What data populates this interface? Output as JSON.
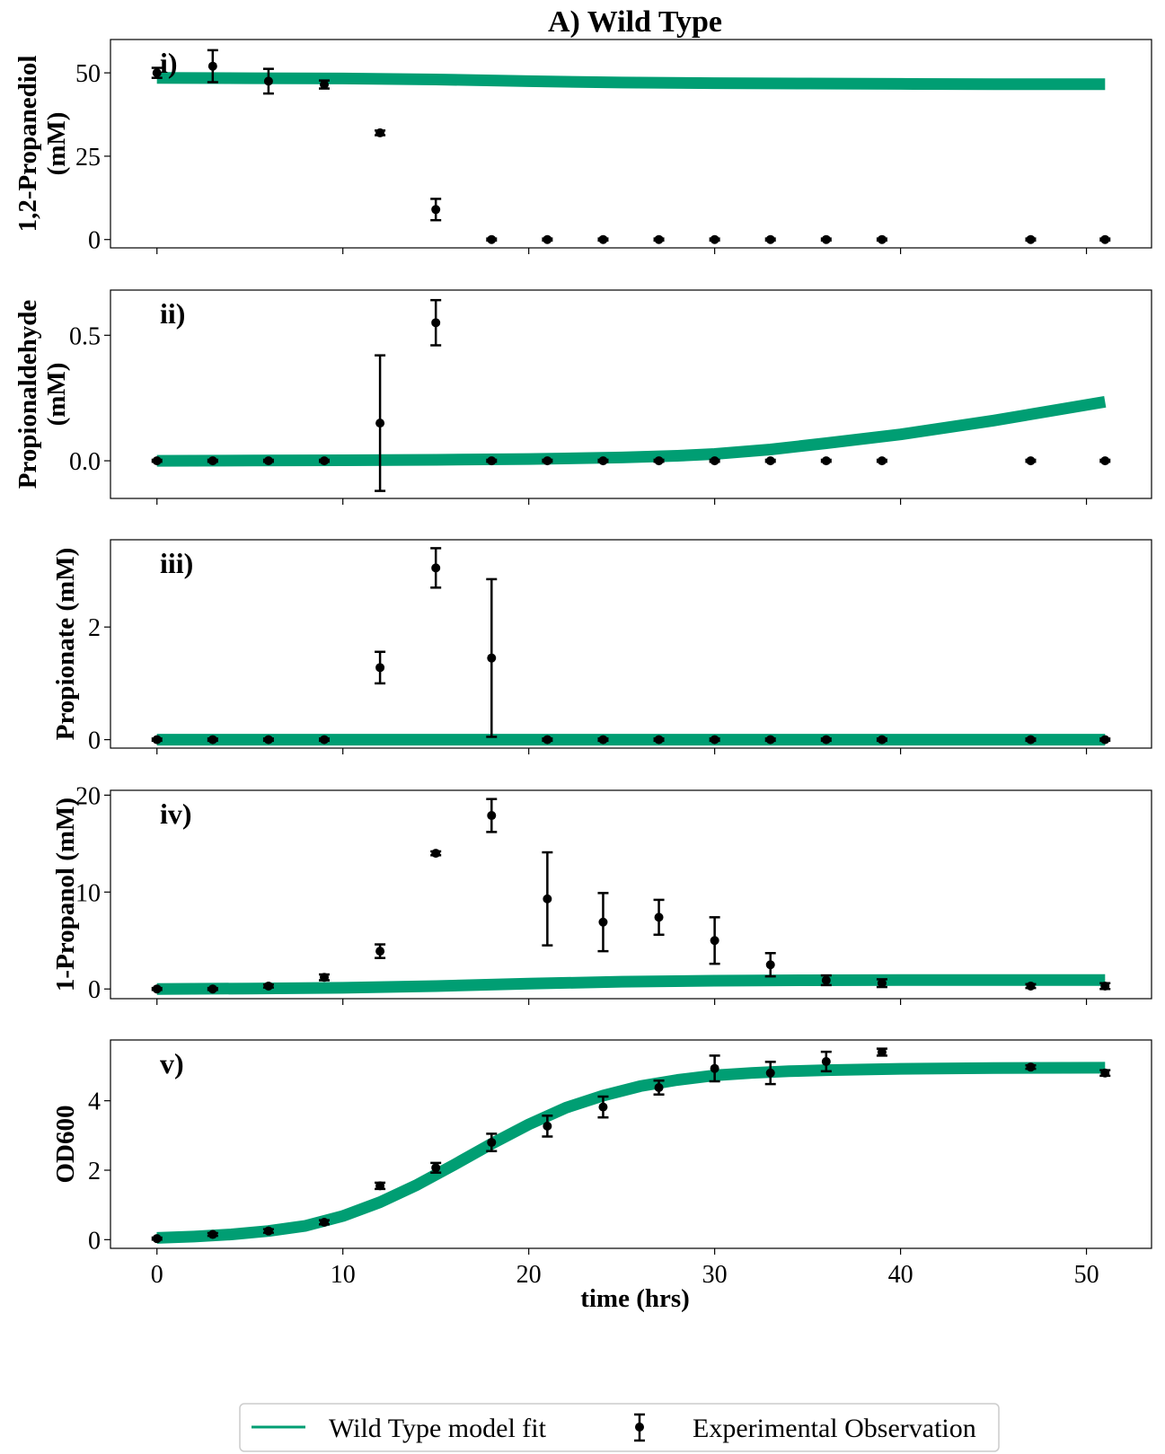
{
  "chart_data": {
    "type": "line",
    "title": "A) Wild Type",
    "xlabel": "time (hrs)",
    "xlim": [
      -2.5,
      53.5
    ],
    "xticks": [
      0,
      10,
      20,
      30,
      40,
      50
    ],
    "colors": {
      "model": "#009E73",
      "observation": "#000000"
    },
    "legend": {
      "position": "bottom-center",
      "entries": [
        "Wild Type model fit",
        "Experimental Observation"
      ]
    },
    "panels": [
      {
        "tag": "i)",
        "ylabel_lines": [
          "1,2-Propanediol",
          "(mM)"
        ],
        "ylim": [
          -2.5,
          60
        ],
        "yticks": [
          0,
          25,
          50
        ],
        "ytick_labels": [
          "0",
          "25",
          "50"
        ],
        "model": {
          "name": "Wild Type model fit",
          "x": [
            0,
            5,
            10,
            15,
            20,
            25,
            30,
            35,
            40,
            45,
            51
          ],
          "y": [
            48.5,
            48.4,
            48.3,
            48.0,
            47.5,
            47.1,
            46.9,
            46.8,
            46.7,
            46.6,
            46.6
          ]
        },
        "observations": {
          "name": "Experimental Observation",
          "x": [
            0,
            3,
            6,
            9,
            12,
            15,
            18,
            21,
            24,
            27,
            30,
            33,
            36,
            39,
            47,
            51
          ],
          "y": [
            50,
            52,
            47.5,
            46.5,
            32,
            9,
            0,
            0,
            0,
            0,
            0,
            0,
            0,
            0,
            0,
            0
          ],
          "err": [
            1.5,
            4.8,
            3.7,
            1.2,
            0.7,
            3.2,
            0.3,
            0.3,
            0.3,
            0.3,
            0.3,
            0.3,
            0.3,
            0.3,
            0.3,
            0.3
          ]
        }
      },
      {
        "tag": "ii)",
        "ylabel_lines": [
          "Propionaldehyde",
          "(mM)"
        ],
        "ylim": [
          -0.15,
          0.68
        ],
        "yticks": [
          0.0,
          0.5
        ],
        "ytick_labels": [
          "0.0",
          "0.5"
        ],
        "model": {
          "name": "Wild Type model fit",
          "x": [
            0,
            5,
            10,
            15,
            20,
            25,
            28,
            30,
            33,
            36,
            40,
            45,
            51
          ],
          "y": [
            0.0,
            0.001,
            0.002,
            0.004,
            0.007,
            0.013,
            0.02,
            0.027,
            0.045,
            0.07,
            0.105,
            0.16,
            0.235
          ]
        },
        "observations": {
          "name": "Experimental Observation",
          "x": [
            0,
            3,
            6,
            9,
            12,
            15,
            18,
            21,
            24,
            27,
            30,
            33,
            36,
            39,
            47,
            51
          ],
          "y": [
            0,
            0,
            0,
            0,
            0.15,
            0.55,
            0,
            0,
            0,
            0,
            0,
            0,
            0,
            0,
            0,
            0
          ],
          "err": [
            0.004,
            0.004,
            0.004,
            0.004,
            0.27,
            0.09,
            0.004,
            0.004,
            0.004,
            0.004,
            0.004,
            0.004,
            0.004,
            0.004,
            0.004,
            0.004
          ]
        }
      },
      {
        "tag": "iii)",
        "ylabel_lines": [
          "Propionate (mM)"
        ],
        "ylim": [
          -0.15,
          3.55
        ],
        "yticks": [
          0,
          2
        ],
        "ytick_labels": [
          "0",
          "2"
        ],
        "model": {
          "name": "Wild Type model fit",
          "x": [
            0,
            10,
            20,
            30,
            40,
            51
          ],
          "y": [
            0.0,
            0.0,
            0.0,
            0.0,
            0.0,
            0.0
          ]
        },
        "observations": {
          "name": "Experimental Observation",
          "x": [
            0,
            3,
            6,
            9,
            12,
            15,
            18,
            21,
            24,
            27,
            30,
            33,
            36,
            39,
            47,
            51
          ],
          "y": [
            0,
            0,
            0,
            0,
            1.28,
            3.05,
            1.45,
            0,
            0,
            0,
            0,
            0,
            0,
            0,
            0,
            0
          ],
          "err": [
            0.02,
            0.02,
            0.02,
            0.02,
            0.28,
            0.35,
            1.4,
            0.02,
            0.02,
            0.02,
            0.02,
            0.02,
            0.02,
            0.02,
            0.02,
            0.02
          ]
        }
      },
      {
        "tag": "iv)",
        "ylabel_lines": [
          "1-Propanol (mM)"
        ],
        "ylim": [
          -1.0,
          20.5
        ],
        "yticks": [
          0,
          10,
          20
        ],
        "ytick_labels": [
          "0",
          "10",
          "20"
        ],
        "model": {
          "name": "Wild Type model fit",
          "x": [
            0,
            5,
            10,
            15,
            20,
            25,
            30,
            35,
            40,
            45,
            51
          ],
          "y": [
            0.0,
            0.05,
            0.12,
            0.3,
            0.55,
            0.75,
            0.85,
            0.9,
            0.92,
            0.93,
            0.93
          ]
        },
        "observations": {
          "name": "Experimental Observation",
          "x": [
            0,
            3,
            6,
            9,
            12,
            15,
            18,
            21,
            24,
            27,
            30,
            33,
            36,
            39,
            47,
            51
          ],
          "y": [
            0,
            0,
            0.3,
            1.2,
            3.9,
            14,
            17.9,
            9.3,
            6.9,
            7.4,
            5.0,
            2.5,
            0.9,
            0.6,
            0.3,
            0.3
          ],
          "err": [
            0.1,
            0.1,
            0.15,
            0.3,
            0.7,
            0.2,
            1.7,
            4.8,
            3.0,
            1.8,
            2.4,
            1.2,
            0.5,
            0.4,
            0.2,
            0.3
          ]
        }
      },
      {
        "tag": "v)",
        "ylabel_lines": [
          "OD600"
        ],
        "ylim": [
          -0.25,
          5.75
        ],
        "yticks": [
          0,
          2,
          4
        ],
        "ytick_labels": [
          "0",
          "2",
          "4"
        ],
        "model": {
          "name": "Wild Type model fit",
          "x": [
            0,
            2,
            4,
            6,
            8,
            10,
            12,
            14,
            16,
            18,
            20,
            22,
            24,
            26,
            28,
            30,
            32,
            34,
            36,
            38,
            40,
            45,
            51
          ],
          "y": [
            0.05,
            0.09,
            0.15,
            0.25,
            0.4,
            0.68,
            1.08,
            1.58,
            2.16,
            2.76,
            3.32,
            3.8,
            4.15,
            4.42,
            4.6,
            4.73,
            4.8,
            4.85,
            4.88,
            4.9,
            4.92,
            4.94,
            4.95
          ]
        },
        "observations": {
          "name": "Experimental Observation",
          "x": [
            0,
            3,
            6,
            9,
            12,
            15,
            18,
            21,
            24,
            27,
            30,
            33,
            36,
            39,
            47,
            51
          ],
          "y": [
            0.03,
            0.15,
            0.25,
            0.5,
            1.55,
            2.07,
            2.8,
            3.27,
            3.82,
            4.38,
            4.93,
            4.8,
            5.13,
            5.4,
            4.97,
            4.8
          ],
          "err": [
            0.03,
            0.04,
            0.05,
            0.06,
            0.09,
            0.14,
            0.25,
            0.3,
            0.3,
            0.2,
            0.37,
            0.32,
            0.28,
            0.1,
            0.05,
            0.08
          ]
        }
      }
    ]
  }
}
